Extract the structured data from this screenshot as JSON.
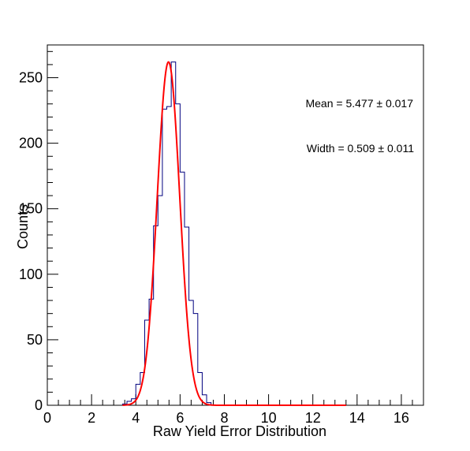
{
  "chart_data": {
    "type": "histogram",
    "xlabel": "Raw Yield Error Distribution",
    "ylabel": "Counts",
    "xlim": [
      0,
      17
    ],
    "ylim": [
      0,
      275
    ],
    "x_ticks": [
      0,
      2,
      4,
      6,
      8,
      10,
      12,
      14,
      16
    ],
    "y_ticks": [
      0,
      50,
      100,
      150,
      200,
      250
    ],
    "bin_edges": [
      3.4,
      3.6,
      3.8,
      4.0,
      4.2,
      4.4,
      4.6,
      4.8,
      5.0,
      5.2,
      5.4,
      5.6,
      5.8,
      6.0,
      6.2,
      6.4,
      6.6,
      6.8,
      7.0,
      7.2,
      7.4
    ],
    "counts": [
      1,
      3,
      5,
      16,
      25,
      65,
      81,
      137,
      160,
      226,
      228,
      262,
      230,
      178,
      136,
      80,
      70,
      25,
      8,
      2
    ],
    "fit": {
      "type": "gaussian",
      "amplitude": 262,
      "mean": 5.477,
      "sigma": 0.509,
      "x_range": [
        3.4,
        13.5
      ]
    },
    "annotations": [
      "Mean = 5.477 ± 0.017",
      "Width = 0.509 ± 0.011"
    ],
    "colors": {
      "histogram": "#00007f",
      "fit": "#ff0000",
      "axis": "#000000"
    },
    "grid": false,
    "legend": "none"
  }
}
